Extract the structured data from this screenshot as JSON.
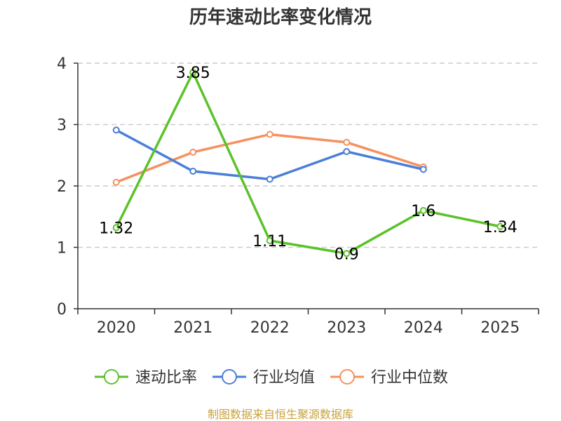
{
  "chart_data": {
    "type": "line",
    "title": "历年速动比率变化情况",
    "categories": [
      "2020",
      "2021",
      "2022",
      "2023",
      "2024",
      "2025"
    ],
    "ylim": [
      0,
      4
    ],
    "yticks": [
      0,
      1,
      2,
      3,
      4
    ],
    "grid": true,
    "legend_position": "bottom",
    "series": [
      {
        "name": "速动比率",
        "color": "#5cc22a",
        "values": [
          1.32,
          3.85,
          1.11,
          0.9,
          1.6,
          1.34
        ],
        "labels": [
          "1.32",
          "3.85",
          "1.11",
          "0.9",
          "1.6",
          "1.34"
        ]
      },
      {
        "name": "行业均值",
        "color": "#4a7fd8",
        "values": [
          2.91,
          2.24,
          2.11,
          2.56,
          2.27,
          null
        ]
      },
      {
        "name": "行业中位数",
        "color": "#f5915e",
        "values": [
          2.06,
          2.55,
          2.84,
          2.71,
          2.31,
          null
        ]
      }
    ]
  },
  "footer": {
    "source": "制图数据来自恒生聚源数据库"
  }
}
